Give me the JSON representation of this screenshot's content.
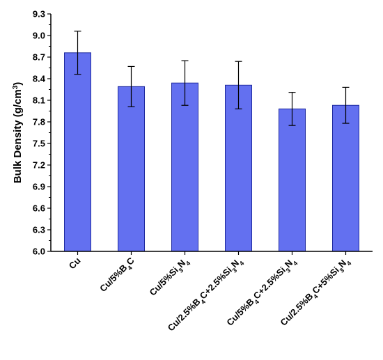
{
  "chart_data": {
    "type": "bar",
    "categories": [
      {
        "segments": [
          {
            "t": "Cu",
            "sub": false
          }
        ]
      },
      {
        "segments": [
          {
            "t": "Cu/5%B",
            "sub": false
          },
          {
            "t": "4",
            "sub": true
          },
          {
            "t": "C",
            "sub": false
          }
        ]
      },
      {
        "segments": [
          {
            "t": "Cu/5%Si",
            "sub": false
          },
          {
            "t": "3",
            "sub": true
          },
          {
            "t": "N",
            "sub": false
          },
          {
            "t": "4",
            "sub": true
          }
        ]
      },
      {
        "segments": [
          {
            "t": "Cu/2.5%B",
            "sub": false
          },
          {
            "t": "4",
            "sub": true
          },
          {
            "t": "C+2.5%Si",
            "sub": false
          },
          {
            "t": "3",
            "sub": true
          },
          {
            "t": "N",
            "sub": false
          },
          {
            "t": "4",
            "sub": true
          }
        ]
      },
      {
        "segments": [
          {
            "t": "Cu/5%B",
            "sub": false
          },
          {
            "t": "4",
            "sub": true
          },
          {
            "t": "C+2.5%Si",
            "sub": false
          },
          {
            "t": "3",
            "sub": true
          },
          {
            "t": "N",
            "sub": false
          },
          {
            "t": "4",
            "sub": true
          }
        ]
      },
      {
        "segments": [
          {
            "t": "Cu/2.5%B",
            "sub": false
          },
          {
            "t": "4",
            "sub": true
          },
          {
            "t": "C+5%Si",
            "sub": false
          },
          {
            "t": "3",
            "sub": true
          },
          {
            "t": "N",
            "sub": false
          },
          {
            "t": "4",
            "sub": true
          }
        ]
      }
    ],
    "values": [
      8.76,
      8.29,
      8.34,
      8.31,
      7.98,
      8.03
    ],
    "errors": [
      0.3,
      0.28,
      0.31,
      0.33,
      0.23,
      0.25
    ],
    "ylabel": {
      "main": "Bulk Density (g/cm",
      "sup": "3",
      "close": ")"
    },
    "ylim": [
      6.0,
      9.3
    ],
    "yticks": [
      "6.0",
      "6.3",
      "6.6",
      "6.9",
      "7.2",
      "7.5",
      "7.8",
      "8.1",
      "8.4",
      "8.7",
      "9.0",
      "9.3"
    ],
    "bar_color": "#6370F0",
    "bar_edge_color": "#1F2A9E",
    "grid": false
  }
}
